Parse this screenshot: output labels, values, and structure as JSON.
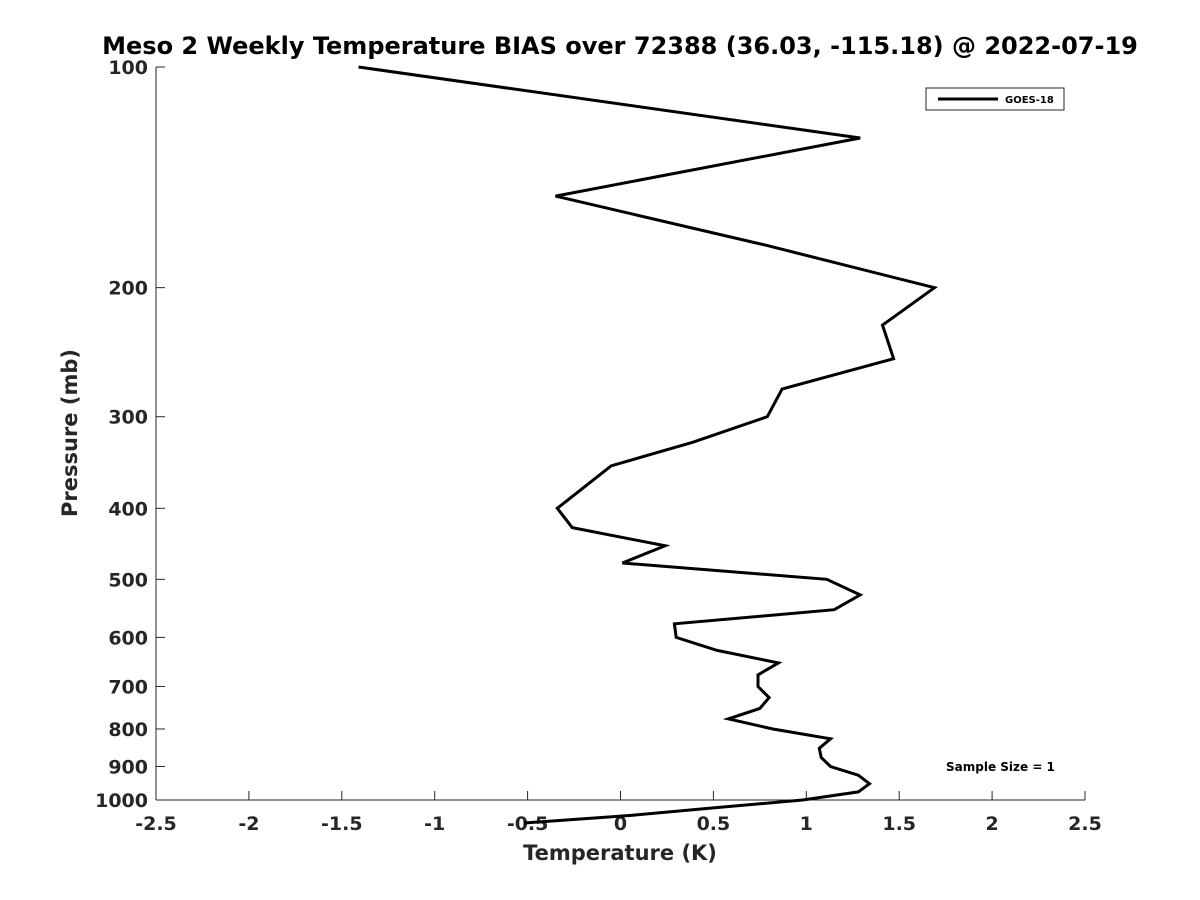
{
  "chart_data": {
    "type": "line",
    "title": "Meso 2 Weekly Temperature BIAS over 72388 (36.03, -115.18) @ 2022-07-19",
    "xlabel": "Temperature (K)",
    "ylabel": "Pressure (mb)",
    "xlim": [
      -2.5,
      2.5
    ],
    "ylim": [
      100,
      1000
    ],
    "yscale": "log",
    "y_reversed": true,
    "grid": false,
    "legend_position": "top-right",
    "x_ticks": [
      -2.5,
      -2,
      -1.5,
      -1,
      -0.5,
      0,
      0.5,
      1,
      1.5,
      2,
      2.5
    ],
    "x_tick_labels": [
      "-2.5",
      "-2",
      "-1.5",
      "-1",
      "-0.5",
      "0",
      "0.5",
      "1",
      "1.5",
      "2",
      "2.5"
    ],
    "y_ticks": [
      100,
      200,
      300,
      400,
      500,
      600,
      700,
      800,
      900,
      1000
    ],
    "y_tick_labels": [
      "100",
      "200",
      "300",
      "400",
      "500",
      "600",
      "700",
      "800",
      "900",
      "1000"
    ],
    "annotation": "Sample Size = 1",
    "series": [
      {
        "name": "GOES-18",
        "color": "#000000",
        "points": [
          {
            "x": -1.41,
            "y": 100
          },
          {
            "x": 1.29,
            "y": 125
          },
          {
            "x": -0.35,
            "y": 150
          },
          {
            "x": 0.78,
            "y": 175
          },
          {
            "x": 1.69,
            "y": 200
          },
          {
            "x": 1.41,
            "y": 225
          },
          {
            "x": 1.47,
            "y": 250
          },
          {
            "x": 0.87,
            "y": 275
          },
          {
            "x": 0.79,
            "y": 300
          },
          {
            "x": 0.39,
            "y": 325
          },
          {
            "x": -0.05,
            "y": 350
          },
          {
            "x": -0.2,
            "y": 375
          },
          {
            "x": -0.34,
            "y": 400
          },
          {
            "x": -0.26,
            "y": 425
          },
          {
            "x": 0.24,
            "y": 450
          },
          {
            "x": 0.01,
            "y": 475
          },
          {
            "x": 1.11,
            "y": 500
          },
          {
            "x": 1.29,
            "y": 525
          },
          {
            "x": 1.15,
            "y": 550
          },
          {
            "x": 0.29,
            "y": 575
          },
          {
            "x": 0.3,
            "y": 600
          },
          {
            "x": 0.52,
            "y": 625
          },
          {
            "x": 0.85,
            "y": 650
          },
          {
            "x": 0.74,
            "y": 675
          },
          {
            "x": 0.74,
            "y": 700
          },
          {
            "x": 0.8,
            "y": 725
          },
          {
            "x": 0.75,
            "y": 750
          },
          {
            "x": 0.58,
            "y": 775
          },
          {
            "x": 0.82,
            "y": 800
          },
          {
            "x": 1.13,
            "y": 825
          },
          {
            "x": 1.07,
            "y": 850
          },
          {
            "x": 1.08,
            "y": 875
          },
          {
            "x": 1.13,
            "y": 900
          },
          {
            "x": 1.28,
            "y": 925
          },
          {
            "x": 1.34,
            "y": 950
          },
          {
            "x": 1.28,
            "y": 975
          },
          {
            "x": 0.98,
            "y": 1000
          },
          {
            "x": 0.5,
            "y": 1025
          },
          {
            "x": 0.05,
            "y": 1050
          },
          {
            "x": -0.52,
            "y": 1075
          }
        ]
      }
    ]
  }
}
